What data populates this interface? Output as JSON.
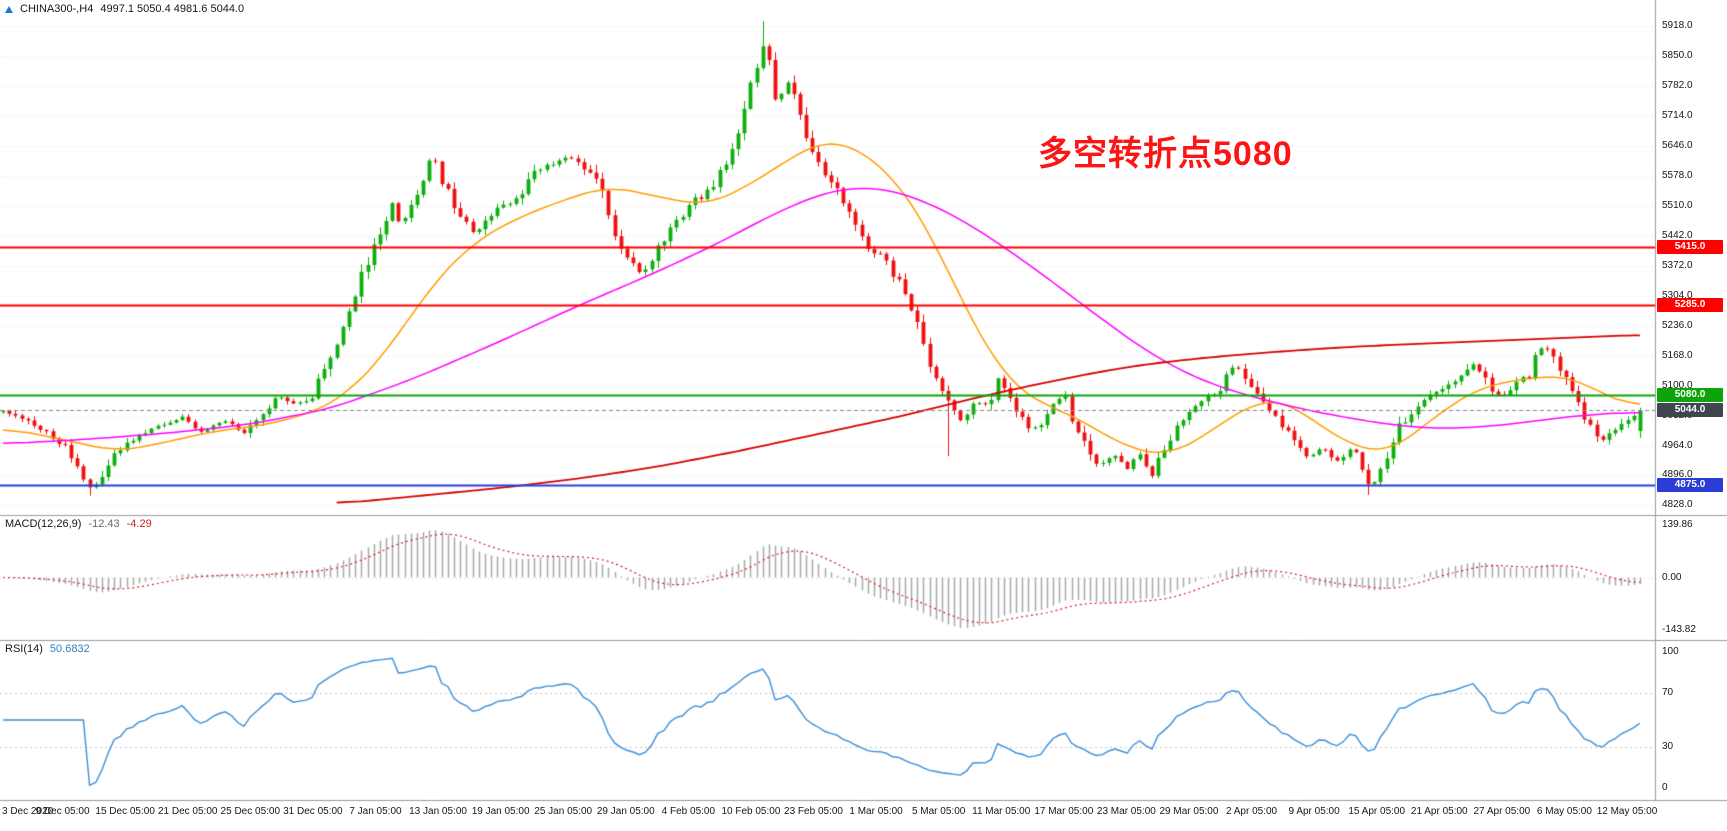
{
  "header": {
    "symbol": "CHINA300-,H4",
    "ohlc": "4997.1 5050.4 4981.6 5044.0"
  },
  "annotation": {
    "text": "多空转折点5080",
    "color": "#fb1515"
  },
  "icons": {
    "symbol_marker": "triangle-up"
  },
  "chart_data": {
    "type": "candlestick",
    "symbol": "CHINA300",
    "timeframe": "H4",
    "ohlc_current": {
      "open": 4997.1,
      "high": 5050.4,
      "low": 4981.6,
      "close": 5044.0
    },
    "price_axis": {
      "range": {
        "min": 4806,
        "max": 5978
      },
      "ticks": [
        "5918.0",
        "5850.0",
        "5782.0",
        "5714.0",
        "5646.0",
        "5578.0",
        "5510.0",
        "5442.0",
        "5372.0",
        "5304.0",
        "5236.0",
        "5168.0",
        "5100.0",
        "5032.0",
        "4964.0",
        "4896.0",
        "4828.0"
      ],
      "tags": [
        {
          "label": "5415.0",
          "value": 5415,
          "color": "#fe0000"
        },
        {
          "label": "5285.0",
          "value": 5285,
          "color": "#fe0000"
        },
        {
          "label": "5080.0",
          "value": 5080,
          "color": "#0ca30c"
        },
        {
          "label": "5044.0",
          "value": 5044,
          "color": "#3f4650"
        },
        {
          "label": "4875.0",
          "value": 4875,
          "color": "#2b3cd6"
        }
      ]
    },
    "time_labels": [
      "3 Dec 2020",
      "9 Dec 05:00",
      "15 Dec 05:00",
      "21 Dec 05:00",
      "25 Dec 05:00",
      "31 Dec 05:00",
      "7 Jan 05:00",
      "13 Jan 05:00",
      "19 Jan 05:00",
      "25 Jan 05:00",
      "29 Jan 05:00",
      "4 Feb 05:00",
      "10 Feb 05:00",
      "23 Feb 05:00",
      "1 Mar 05:00",
      "5 Mar 05:00",
      "11 Mar 05:00",
      "17 Mar 05:00",
      "23 Mar 05:00",
      "29 Mar 05:00",
      "2 Apr 05:00",
      "9 Apr 05:00",
      "15 Apr 05:00",
      "21 Apr 05:00",
      "27 Apr 05:00",
      "6 May 05:00",
      "12 May 05:00"
    ],
    "horizontal_lines": [
      {
        "value": 5415,
        "color": "#fe0000",
        "width": 2,
        "style": "solid"
      },
      {
        "value": 5285,
        "color": "#fe0000",
        "width": 2,
        "style": "solid"
      },
      {
        "value": 5080,
        "color": "#0ca30c",
        "width": 2,
        "style": "solid"
      },
      {
        "value": 4875,
        "color": "#2b3cd6",
        "width": 2,
        "style": "solid"
      },
      {
        "value": 5044,
        "color": "#8a8a8a",
        "width": 1,
        "style": "dashed"
      }
    ],
    "candles": {
      "count": 266,
      "close_waypoints": [
        [
          0,
          5040
        ],
        [
          0.012,
          5025
        ],
        [
          0.025,
          4995
        ],
        [
          0.038,
          4960
        ],
        [
          0.052,
          4862
        ],
        [
          0.06,
          4900
        ],
        [
          0.072,
          4958
        ],
        [
          0.085,
          4995
        ],
        [
          0.1,
          5012
        ],
        [
          0.11,
          5032
        ],
        [
          0.122,
          4992
        ],
        [
          0.135,
          5018
        ],
        [
          0.148,
          4992
        ],
        [
          0.158,
          5040
        ],
        [
          0.168,
          5078
        ],
        [
          0.178,
          5060
        ],
        [
          0.188,
          5072
        ],
        [
          0.2,
          5160
        ],
        [
          0.208,
          5240
        ],
        [
          0.215,
          5310
        ],
        [
          0.222,
          5380
        ],
        [
          0.23,
          5440
        ],
        [
          0.237,
          5520
        ],
        [
          0.243,
          5465
        ],
        [
          0.25,
          5510
        ],
        [
          0.257,
          5580
        ],
        [
          0.262,
          5625
        ],
        [
          0.268,
          5570
        ],
        [
          0.276,
          5505
        ],
        [
          0.288,
          5445
        ],
        [
          0.298,
          5490
        ],
        [
          0.31,
          5520
        ],
        [
          0.318,
          5545
        ],
        [
          0.325,
          5590
        ],
        [
          0.338,
          5610
        ],
        [
          0.345,
          5625
        ],
        [
          0.355,
          5600
        ],
        [
          0.365,
          5545
        ],
        [
          0.375,
          5430
        ],
        [
          0.39,
          5350
        ],
        [
          0.4,
          5420
        ],
        [
          0.41,
          5470
        ],
        [
          0.422,
          5520
        ],
        [
          0.432,
          5545
        ],
        [
          0.447,
          5640
        ],
        [
          0.458,
          5800
        ],
        [
          0.466,
          5895
        ],
        [
          0.472,
          5740
        ],
        [
          0.481,
          5798
        ],
        [
          0.49,
          5665
        ],
        [
          0.5,
          5590
        ],
        [
          0.512,
          5525
        ],
        [
          0.52,
          5480
        ],
        [
          0.527,
          5420
        ],
        [
          0.538,
          5390
        ],
        [
          0.548,
          5330
        ],
        [
          0.558,
          5240
        ],
        [
          0.566,
          5140
        ],
        [
          0.576,
          5070
        ],
        [
          0.585,
          5020
        ],
        [
          0.594,
          5065
        ],
        [
          0.602,
          5060
        ],
        [
          0.608,
          5115
        ],
        [
          0.616,
          5070
        ],
        [
          0.624,
          5010
        ],
        [
          0.632,
          5000
        ],
        [
          0.64,
          5045
        ],
        [
          0.648,
          5080
        ],
        [
          0.656,
          4995
        ],
        [
          0.663,
          4945
        ],
        [
          0.67,
          4915
        ],
        [
          0.678,
          4950
        ],
        [
          0.686,
          4905
        ],
        [
          0.694,
          4950
        ],
        [
          0.702,
          4895
        ],
        [
          0.71,
          4965
        ],
        [
          0.718,
          5010
        ],
        [
          0.726,
          5040
        ],
        [
          0.735,
          5075
        ],
        [
          0.744,
          5095
        ],
        [
          0.752,
          5148
        ],
        [
          0.762,
          5105
        ],
        [
          0.77,
          5060
        ],
        [
          0.778,
          5032
        ],
        [
          0.788,
          4975
        ],
        [
          0.798,
          4935
        ],
        [
          0.806,
          4958
        ],
        [
          0.815,
          4930
        ],
        [
          0.826,
          4962
        ],
        [
          0.835,
          4870
        ],
        [
          0.843,
          4920
        ],
        [
          0.851,
          5000
        ],
        [
          0.86,
          5042
        ],
        [
          0.87,
          5072
        ],
        [
          0.88,
          5095
        ],
        [
          0.89,
          5122
        ],
        [
          0.9,
          5158
        ],
        [
          0.908,
          5090
        ],
        [
          0.915,
          5072
        ],
        [
          0.923,
          5098
        ],
        [
          0.932,
          5128
        ],
        [
          0.941,
          5200
        ],
        [
          0.95,
          5150
        ],
        [
          0.958,
          5090
        ],
        [
          0.966,
          5035
        ],
        [
          0.975,
          4968
        ],
        [
          0.983,
          4995
        ],
        [
          0.991,
          5022
        ],
        [
          1,
          5044
        ]
      ],
      "forced_extremes": [
        {
          "frac": 0.466,
          "high": 5930
        },
        {
          "frac": 0.052,
          "low": 4850
        },
        {
          "frac": 0.578,
          "low": 4940
        },
        {
          "frac": 0.835,
          "low": 4852
        }
      ]
    },
    "moving_averages": [
      {
        "name": "MA-fast",
        "color": "#ff9c00",
        "width": 1.5,
        "points": [
          [
            0,
            5005
          ],
          [
            0.04,
            4975
          ],
          [
            0.07,
            4950
          ],
          [
            0.1,
            4972
          ],
          [
            0.13,
            4998
          ],
          [
            0.16,
            5010
          ],
          [
            0.19,
            5040
          ],
          [
            0.21,
            5080
          ],
          [
            0.235,
            5180
          ],
          [
            0.26,
            5320
          ],
          [
            0.285,
            5420
          ],
          [
            0.31,
            5475
          ],
          [
            0.34,
            5520
          ],
          [
            0.37,
            5555
          ],
          [
            0.4,
            5530
          ],
          [
            0.43,
            5510
          ],
          [
            0.45,
            5545
          ],
          [
            0.47,
            5590
          ],
          [
            0.49,
            5640
          ],
          [
            0.505,
            5660
          ],
          [
            0.52,
            5645
          ],
          [
            0.54,
            5590
          ],
          [
            0.555,
            5520
          ],
          [
            0.57,
            5420
          ],
          [
            0.585,
            5300
          ],
          [
            0.6,
            5190
          ],
          [
            0.615,
            5110
          ],
          [
            0.63,
            5065
          ],
          [
            0.65,
            5040
          ],
          [
            0.67,
            4995
          ],
          [
            0.69,
            4955
          ],
          [
            0.71,
            4940
          ],
          [
            0.73,
            4975
          ],
          [
            0.75,
            5030
          ],
          [
            0.77,
            5070
          ],
          [
            0.785,
            5065
          ],
          [
            0.8,
            5020
          ],
          [
            0.815,
            4985
          ],
          [
            0.83,
            4955
          ],
          [
            0.845,
            4945
          ],
          [
            0.86,
            4985
          ],
          [
            0.875,
            5030
          ],
          [
            0.89,
            5070
          ],
          [
            0.905,
            5100
          ],
          [
            0.92,
            5110
          ],
          [
            0.935,
            5118
          ],
          [
            0.95,
            5125
          ],
          [
            0.965,
            5110
          ],
          [
            0.98,
            5075
          ],
          [
            1,
            5048
          ]
        ]
      },
      {
        "name": "MA-mid",
        "color": "#ff00ff",
        "width": 1.5,
        "points": [
          [
            0,
            4968
          ],
          [
            0.05,
            4978
          ],
          [
            0.1,
            4992
          ],
          [
            0.15,
            5012
          ],
          [
            0.2,
            5048
          ],
          [
            0.25,
            5115
          ],
          [
            0.3,
            5195
          ],
          [
            0.35,
            5280
          ],
          [
            0.4,
            5360
          ],
          [
            0.44,
            5430
          ],
          [
            0.47,
            5490
          ],
          [
            0.5,
            5538
          ],
          [
            0.52,
            5552
          ],
          [
            0.54,
            5548
          ],
          [
            0.56,
            5525
          ],
          [
            0.585,
            5480
          ],
          [
            0.61,
            5420
          ],
          [
            0.64,
            5340
          ],
          [
            0.67,
            5255
          ],
          [
            0.7,
            5175
          ],
          [
            0.73,
            5115
          ],
          [
            0.76,
            5078
          ],
          [
            0.79,
            5050
          ],
          [
            0.82,
            5028
          ],
          [
            0.85,
            5010
          ],
          [
            0.88,
            5002
          ],
          [
            0.91,
            5008
          ],
          [
            0.94,
            5022
          ],
          [
            0.97,
            5035
          ],
          [
            1,
            5040
          ]
        ]
      },
      {
        "name": "MA-slow",
        "color": "#d40000",
        "width": 1.8,
        "points": [
          [
            0.205,
            4832
          ],
          [
            0.25,
            4848
          ],
          [
            0.3,
            4866
          ],
          [
            0.35,
            4888
          ],
          [
            0.4,
            4916
          ],
          [
            0.45,
            4952
          ],
          [
            0.5,
            4992
          ],
          [
            0.55,
            5032
          ],
          [
            0.58,
            5060
          ],
          [
            0.61,
            5086
          ],
          [
            0.64,
            5110
          ],
          [
            0.67,
            5132
          ],
          [
            0.7,
            5150
          ],
          [
            0.74,
            5166
          ],
          [
            0.78,
            5178
          ],
          [
            0.82,
            5188
          ],
          [
            0.86,
            5195
          ],
          [
            0.9,
            5201
          ],
          [
            0.94,
            5207
          ],
          [
            1,
            5216
          ]
        ]
      }
    ],
    "macd": {
      "label": "MACD(12,26,9)",
      "main_value": "-12.43",
      "signal_value": "-4.29",
      "params": {
        "fast": 12,
        "slow": 26,
        "signal": 9
      },
      "axis_labels": [
        "139.86",
        "0.00",
        "-143.82"
      ]
    },
    "rsi": {
      "label": "RSI(14)",
      "value_str": "50.6832",
      "period": 14,
      "levels": [
        70,
        30
      ],
      "axis_labels": [
        "100",
        "70",
        "30",
        "0"
      ]
    },
    "colors": {
      "up": "#0faf0f",
      "down": "#ee1111",
      "macd_hist": "#a9a9a9",
      "macd_signal": "#dd2222",
      "rsi_line": "#3a8fd9",
      "levels": "#c8c8c8",
      "grid": "#e5e5e5",
      "grid2": "#dcdcdc"
    }
  }
}
